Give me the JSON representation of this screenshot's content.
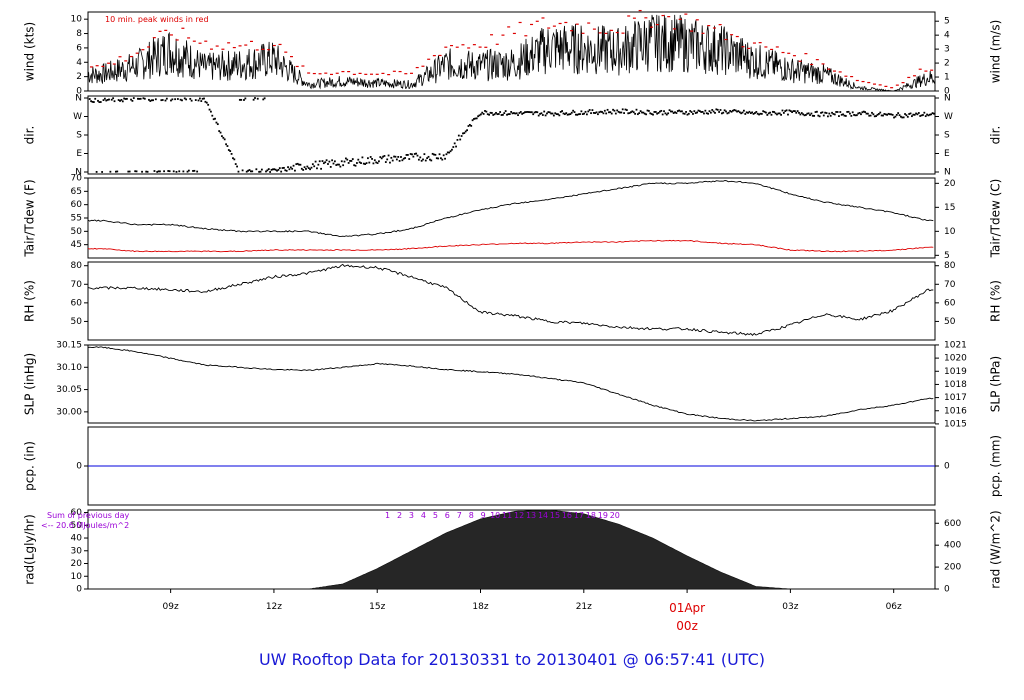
{
  "footer": {
    "title": "UW Rooftop Data for 20130331  to  20130401 @ 06:57:41  (UTC)"
  },
  "colors": {
    "series": "#000000",
    "peak": "#dd0000",
    "dewpoint": "#dd0000",
    "precip": "#0000dd",
    "annotation": "#9a00d6",
    "date_marker": "#dd0000"
  },
  "chart_data": [
    {
      "type": "line",
      "name": "wind",
      "ylabel": "wind (kts)",
      "ylabel_right": "wind (m/s)",
      "ylim": [
        0,
        11
      ],
      "yticks": [
        0,
        2,
        4,
        6,
        8,
        10
      ],
      "right_yticks": [
        0,
        1,
        2,
        3,
        4,
        5
      ],
      "right_to_left_factor": 1.944,
      "annotation": "10 min. peak winds in red",
      "x_hours": [
        7,
        8,
        9,
        10,
        11,
        12,
        13,
        14,
        15,
        16,
        17,
        18,
        19,
        20,
        21,
        22,
        23,
        24,
        25,
        26,
        27,
        28,
        29,
        30,
        31
      ],
      "series": [
        {
          "role": "sustained",
          "values": [
            2.5,
            3.8,
            6.2,
            3.5,
            4.0,
            4.8,
            1.0,
            1.5,
            1.2,
            1.0,
            4.0,
            3.8,
            4.2,
            6.5,
            6.3,
            6.0,
            7.5,
            7.0,
            6.2,
            4.5,
            3.2,
            2.5,
            0.5,
            0.0,
            2.0
          ]
        },
        {
          "role": "peak",
          "values": [
            3.5,
            5.5,
            8.5,
            7.0,
            6.5,
            6.8,
            2.5,
            2.8,
            2.5,
            2.5,
            6.5,
            6.8,
            8.5,
            9.8,
            9.5,
            9.2,
            10.8,
            10.2,
            8.5,
            6.5,
            5.5,
            3.8,
            1.5,
            0.5,
            3.5
          ]
        }
      ]
    },
    {
      "type": "scatter",
      "name": "dir",
      "ylabel": "dir.",
      "ylabel_right": "dir.",
      "yticks": [
        "N",
        "E",
        "S",
        "W",
        "N"
      ],
      "x_hours": [
        7,
        8,
        9,
        10,
        11,
        12,
        13,
        14,
        15,
        16,
        17,
        18,
        19,
        20,
        21,
        22,
        23,
        24,
        25,
        26,
        27,
        28,
        29,
        30,
        31
      ],
      "values_deg": [
        350,
        355,
        358,
        355,
        0,
        5,
        30,
        45,
        60,
        70,
        80,
        290,
        285,
        285,
        290,
        295,
        290,
        290,
        295,
        285,
        290,
        280,
        285,
        275,
        280
      ]
    },
    {
      "type": "line",
      "name": "temperature",
      "ylabel": "Tair/Tdew (F)",
      "ylabel_right": "Tair/Tdew (C)",
      "ylim": [
        40,
        70
      ],
      "yticks": [
        45,
        50,
        55,
        60,
        65,
        70
      ],
      "right_yticks": [
        5,
        10,
        15,
        20
      ],
      "x_hours": [
        7,
        8,
        9,
        10,
        11,
        12,
        13,
        14,
        15,
        16,
        17,
        18,
        19,
        20,
        21,
        22,
        23,
        24,
        25,
        26,
        27,
        28,
        29,
        30,
        31
      ],
      "series": [
        {
          "role": "air",
          "values": [
            54,
            52.5,
            52.5,
            51,
            50,
            50,
            50,
            48,
            49,
            51,
            55,
            58,
            60.5,
            62,
            64,
            66,
            68,
            68,
            69,
            68,
            64,
            61,
            59,
            57,
            54
          ]
        },
        {
          "role": "dewpoint",
          "values": [
            43.5,
            42.5,
            42.5,
            42.5,
            42.5,
            43,
            43,
            43,
            43,
            43.5,
            44.5,
            45,
            45.5,
            45.5,
            46,
            46,
            46.5,
            46.5,
            45.5,
            45,
            43,
            42.5,
            42.5,
            43,
            44
          ]
        }
      ]
    },
    {
      "type": "line",
      "name": "rh",
      "ylabel": "RH (%)",
      "ylabel_right": "RH (%)",
      "ylim": [
        40,
        82
      ],
      "yticks": [
        50,
        60,
        70,
        80
      ],
      "x_hours": [
        7,
        8,
        9,
        10,
        11,
        12,
        13,
        14,
        15,
        16,
        17,
        18,
        19,
        20,
        21,
        22,
        23,
        24,
        25,
        26,
        27,
        28,
        29,
        30,
        31
      ],
      "values": [
        68,
        68,
        67,
        66,
        70,
        74,
        76,
        80,
        79,
        74,
        68,
        55,
        53,
        50,
        49,
        47,
        46,
        46,
        44,
        43,
        48,
        54,
        51,
        56,
        67
      ]
    },
    {
      "type": "line",
      "name": "slp",
      "ylabel": "SLP (inHg)",
      "ylabel_right": "SLP (hPa)",
      "ylim": [
        29.975,
        30.15
      ],
      "yticks": [
        30.0,
        30.05,
        30.1,
        30.15
      ],
      "yticks_labels": [
        "30.00",
        "30.05",
        "30.10",
        "30.15"
      ],
      "right_yticks": [
        1015,
        1016,
        1017,
        1018,
        1019,
        1020,
        1021
      ],
      "x_hours": [
        7,
        8,
        9,
        10,
        11,
        12,
        13,
        14,
        15,
        16,
        17,
        18,
        19,
        20,
        21,
        22,
        23,
        24,
        25,
        26,
        27,
        28,
        29,
        30,
        31
      ],
      "values": [
        30.145,
        30.135,
        30.12,
        30.105,
        30.1,
        30.095,
        30.093,
        30.1,
        30.108,
        30.103,
        30.095,
        30.09,
        30.085,
        30.075,
        30.065,
        30.04,
        30.015,
        29.995,
        29.985,
        29.98,
        29.985,
        29.99,
        30.005,
        30.015,
        30.03
      ]
    },
    {
      "type": "line",
      "name": "precip",
      "ylabel": "pcp. (in)",
      "ylabel_right": "pcp. (mm)",
      "ylim": [
        -1,
        1
      ],
      "yticks": [
        0
      ],
      "right_yticks": [
        0
      ],
      "x_hours": [
        7,
        31
      ],
      "values": [
        0,
        0
      ]
    },
    {
      "type": "area",
      "name": "radiation",
      "ylabel": "rad(Lgly/hr)",
      "ylabel_right": "rad (W/m^2)",
      "ylim": [
        0,
        62
      ],
      "yticks": [
        0,
        10,
        20,
        30,
        40,
        50,
        60
      ],
      "right_yticks": [
        0,
        200,
        400,
        600
      ],
      "right_to_left_factor": 0.08598,
      "annotations": [
        "Sum of previous day",
        "<-- 20.6 MJoules/m^2"
      ],
      "hour_markers": [
        "1",
        "2",
        "3",
        "4",
        "5",
        "6",
        "7",
        "8",
        "9",
        "10",
        "11",
        "12",
        "13",
        "14",
        "15",
        "16",
        "17",
        "18",
        "19",
        "20"
      ],
      "x_hours": [
        7,
        8,
        9,
        10,
        11,
        12,
        13,
        14,
        15,
        16,
        17,
        18,
        19,
        20,
        21,
        22,
        23,
        24,
        25,
        26,
        27,
        28,
        29,
        30,
        31
      ],
      "values": [
        0,
        0,
        0,
        0,
        0,
        0,
        0,
        4,
        16,
        30,
        44,
        55,
        61,
        62,
        59,
        51,
        40,
        26,
        13,
        2,
        0,
        0,
        0,
        0,
        0
      ]
    }
  ],
  "x_axis": {
    "xlim_hours": [
      6.6,
      31.2
    ],
    "ticks": [
      {
        "hour": 9,
        "label": "09z"
      },
      {
        "hour": 12,
        "label": "12z"
      },
      {
        "hour": 15,
        "label": "15z"
      },
      {
        "hour": 18,
        "label": "18z"
      },
      {
        "hour": 21,
        "label": "21z"
      },
      {
        "hour": 24,
        "label": "00z",
        "date_label": "01Apr"
      },
      {
        "hour": 27,
        "label": "03z"
      },
      {
        "hour": 30,
        "label": "06z"
      }
    ]
  }
}
